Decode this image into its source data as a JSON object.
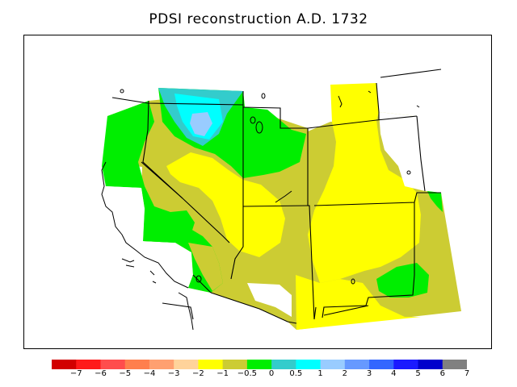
{
  "title": "PDSI reconstruction A.D. 1732",
  "legend": {
    "colors": [
      "#d20000",
      "#ff1a1a",
      "#ff4d4d",
      "#ff7f4d",
      "#ffa070",
      "#ffd39b",
      "#ffff00",
      "#cccc33",
      "#00ee00",
      "#33cccc",
      "#00ffff",
      "#99ccff",
      "#6699ff",
      "#3366ff",
      "#1a1aff",
      "#0000cc",
      "#808080"
    ],
    "ticks": [
      "−7",
      "−6",
      "−5",
      "−4",
      "−3",
      "−2",
      "−1",
      "−0.5",
      "0",
      "0.5",
      "1",
      "2",
      "3",
      "4",
      "5",
      "6",
      "7"
    ]
  }
}
